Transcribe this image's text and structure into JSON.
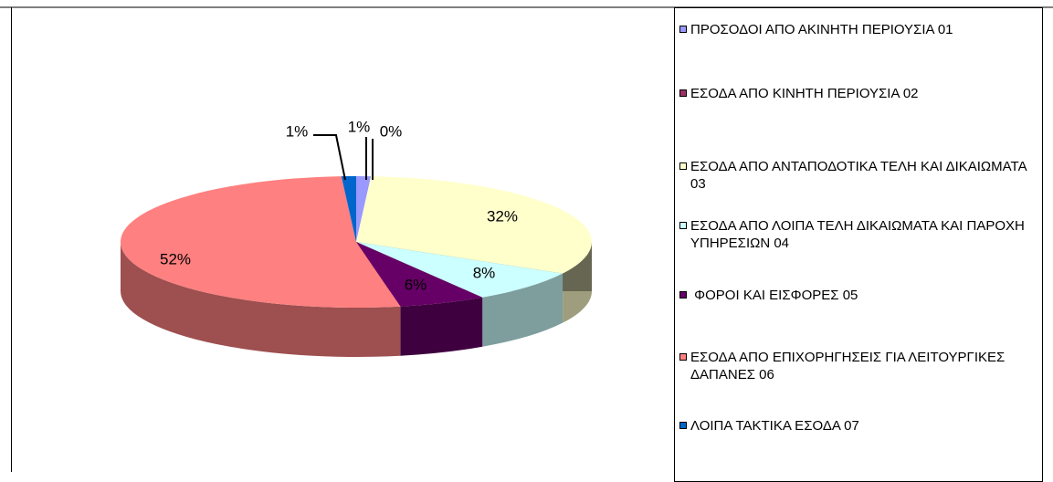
{
  "chart_data": {
    "type": "pie",
    "categories": [
      "ΠΡΟΣΟΔΟΙ ΑΠΟ ΑΚΙΝΗΤΗ ΠΕΡΙΟΥΣΙΑ 01",
      "ΕΣΟΔΑ ΑΠΟ ΚΙΝΗΤΗ ΠΕΡΙΟΥΣΙΑ 02",
      "ΕΣΟΔΑ ΑΠΟ ΑΝΤΑΠΟΔΟΤΙΚΑ ΤΕΛΗ ΚΑΙ ΔΙΚΑΙΩΜΑΤΑ 03",
      "ΕΣΟΔΑ ΑΠΟ ΛΟΙΠΑ ΤΕΛΗ ΔΙΚΑΙΩΜΑΤΑ ΚΑΙ ΠΑΡΟΧΗ ΥΠΗΡΕΣΙΩΝ 04",
      " ΦΟΡΟΙ ΚΑΙ ΕΙΣΦΟΡΕΣ 05",
      "ΕΣΟΔΑ ΑΠΟ ΕΠΙΧΟΡΗΓΗΣΕΙΣ ΓΙΑ ΛΕΙΤΟΥΡΓΙΚΕΣ ΔΑΠΑΝΕΣ 06",
      "ΛΟΙΠΑ ΤΑΚΤΙΚΑ ΕΣΟΔΑ 07"
    ],
    "values": [
      1,
      0,
      32,
      8,
      6,
      52,
      1
    ],
    "value_labels": [
      "1%",
      "0%",
      "32%",
      "8%",
      "6%",
      "52%",
      "1%"
    ],
    "colors": [
      "#9999ff",
      "#993366",
      "#ffffcc",
      "#ccffff",
      "#660066",
      "#ff8080",
      "#0066cc"
    ],
    "legend": "right"
  }
}
